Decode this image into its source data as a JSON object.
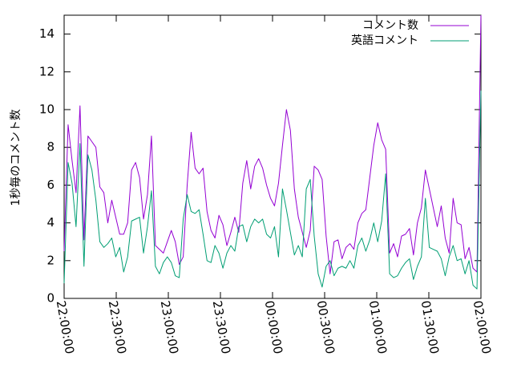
{
  "chart_data": {
    "type": "line",
    "title": "",
    "xlabel": "",
    "ylabel": "1秒毎のコメント数",
    "ylim": [
      0,
      15
    ],
    "y_ticks": [
      "0",
      "2",
      "4",
      "6",
      "8",
      "10",
      "12",
      "14"
    ],
    "xlim": [
      "22:00:00",
      "02:00:00"
    ],
    "x_ticks": [
      "22:00:00",
      "22:30:00",
      "23:00:00",
      "23:30:00",
      "00:00:00",
      "00:30:00",
      "01:00:00",
      "01:30:00",
      "02:00:00"
    ],
    "legend_position": "top-right",
    "grid": false,
    "series": [
      {
        "name": "コメント数",
        "color": "#9400d3",
        "values": [
          2.5,
          9.2,
          7.3,
          5.6,
          10.2,
          3.1,
          8.6,
          8.3,
          8,
          5.9,
          5.6,
          4,
          5.2,
          4.3,
          3.4,
          3.4,
          4,
          6.8,
          7.2,
          6.4,
          4.2,
          5.5,
          8.6,
          2.8,
          2.6,
          2.4,
          3,
          3.6,
          3,
          1.8,
          2.2,
          6,
          8.8,
          6.9,
          6.6,
          6.9,
          4.6,
          3.6,
          3.2,
          4.4,
          3.9,
          2.8,
          3.5,
          4.3,
          3.5,
          6.1,
          7.3,
          5.8,
          7,
          7.4,
          6.9,
          6,
          5.3,
          4.9,
          6.1,
          8.1,
          10,
          8.9,
          5.8,
          4.3,
          3.5,
          2.7,
          3.6,
          7,
          6.8,
          6.3,
          3.3,
          1.3,
          3,
          3.1,
          2.1,
          2.7,
          2.9,
          2.6,
          4,
          4.5,
          4.7,
          6.4,
          8.1,
          9.3,
          8.4,
          7.9,
          2.4,
          2.9,
          2.2,
          3.3,
          3.4,
          3.7,
          2.3,
          4,
          4.8,
          6.8,
          5.8,
          4.8,
          3.8,
          4.9,
          3.2,
          2.4,
          5.3,
          4,
          3.9,
          2.1,
          2.7,
          1.6,
          1.4,
          15.5
        ]
      },
      {
        "name": "英語コメント",
        "color": "#009e73",
        "values": [
          0.8,
          7.2,
          6.1,
          3.8,
          8.2,
          1.7,
          7.6,
          6.8,
          5.2,
          3,
          2.7,
          2.9,
          3.2,
          2.2,
          2.7,
          1.4,
          2.2,
          4.1,
          4.2,
          4.3,
          2.4,
          3.8,
          5.7,
          1.7,
          1.3,
          1.9,
          2.2,
          1.9,
          1.2,
          1.1,
          4.2,
          5.5,
          4.6,
          4.5,
          4.7,
          3.4,
          2,
          1.9,
          2.8,
          2.4,
          1.6,
          2.4,
          2.8,
          2.5,
          3.8,
          3.9,
          3,
          3.8,
          4.2,
          4,
          4.2,
          3.4,
          3.2,
          3.8,
          2.2,
          5.8,
          4.7,
          3.5,
          2.3,
          2.8,
          2.2,
          5.8,
          6.3,
          3.3,
          1.3,
          0.6,
          1.7,
          2,
          1.2,
          1.6,
          1.7,
          1.6,
          2,
          1.6,
          2.8,
          3.2,
          2.5,
          3.1,
          4,
          3,
          4.1,
          6.6,
          1.3,
          1.1,
          1.2,
          1.6,
          1.9,
          2.1,
          1,
          1.7,
          2.2,
          5.3,
          2.7,
          2.6,
          2.5,
          2.1,
          1.2,
          2.2,
          2.8,
          2,
          2.1,
          1.3,
          2,
          0.7,
          0.5,
          11
        ]
      }
    ]
  }
}
